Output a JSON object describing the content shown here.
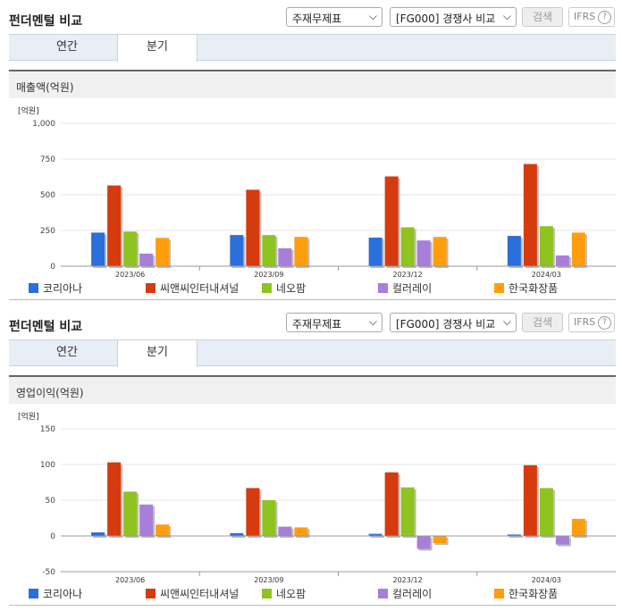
{
  "header": {
    "title": "펀더멘털 비교",
    "statement_select": "주재무제표",
    "peer_select": "[FG000] 경쟁사 비교",
    "search_label": "검색",
    "ifrs_label": "IFRS",
    "help_label": "?"
  },
  "tabs": [
    "연간",
    "분기"
  ],
  "active_tab": "분기",
  "legend": [
    {
      "name": "코리아나",
      "color": "#2a6fdb"
    },
    {
      "name": "씨앤씨인터내셔널",
      "color": "#d63b0e"
    },
    {
      "name": "네오팜",
      "color": "#8fc31f"
    },
    {
      "name": "컬러레이",
      "color": "#a77fd9"
    },
    {
      "name": "한국화장품",
      "color": "#ff9e0d"
    }
  ],
  "charts": [
    {
      "title": "매출액(억원)"
    },
    {
      "title": "영업이익(억원)"
    }
  ],
  "chart_data": [
    {
      "type": "bar",
      "title": "매출액(억원)",
      "ylabel": "[억원]",
      "categories": [
        "2023/06",
        "2023/09",
        "2023/12",
        "2024/03"
      ],
      "ylim": [
        0,
        1000
      ],
      "yticks": [
        0,
        250,
        500,
        750,
        1000
      ],
      "ytick_labels": [
        "0",
        "250",
        "500",
        "750",
        "1,000"
      ],
      "series": [
        {
          "name": "코리아나",
          "values": [
            235,
            218,
            200,
            212
          ]
        },
        {
          "name": "씨앤씨인터내셔널",
          "values": [
            565,
            535,
            628,
            715
          ]
        },
        {
          "name": "네오팜",
          "values": [
            242,
            218,
            272,
            280
          ]
        },
        {
          "name": "컬러레이",
          "values": [
            88,
            125,
            180,
            75
          ]
        },
        {
          "name": "한국화장품",
          "values": [
            198,
            205,
            205,
            235
          ]
        }
      ]
    },
    {
      "type": "bar",
      "title": "영업이익(억원)",
      "ylabel": "[억원]",
      "categories": [
        "2023/06",
        "2023/09",
        "2023/12",
        "2024/03"
      ],
      "ylim": [
        -50,
        150
      ],
      "yticks": [
        -50,
        0,
        50,
        100,
        150
      ],
      "ytick_labels": [
        "-50",
        "0",
        "50",
        "100",
        "150"
      ],
      "series": [
        {
          "name": "코리아나",
          "values": [
            5,
            4,
            3,
            2
          ]
        },
        {
          "name": "씨앤씨인터내셔널",
          "values": [
            103,
            67,
            89,
            99
          ]
        },
        {
          "name": "네오팜",
          "values": [
            62,
            50,
            68,
            67
          ]
        },
        {
          "name": "컬러레이",
          "values": [
            44,
            13,
            -18,
            -12
          ]
        },
        {
          "name": "한국화장품",
          "values": [
            16,
            12,
            -10,
            24
          ]
        }
      ]
    }
  ]
}
